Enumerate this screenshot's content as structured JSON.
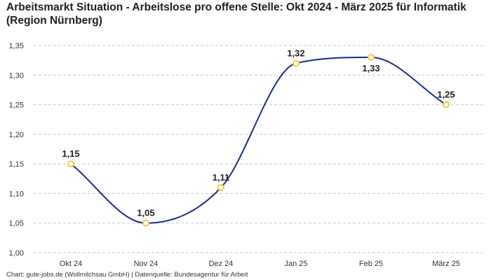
{
  "chart_data": {
    "type": "line",
    "title": "Arbeitsmarkt Situation - Arbeitslose pro offene Stelle: Okt 2024 - März 2025 für Informatik (Region Nürnberg)",
    "categories": [
      "Okt 24",
      "Nov 24",
      "Dez 24",
      "Jan 25",
      "Feb 25",
      "März 25"
    ],
    "series": [
      {
        "name": "Arbeitslose pro offene Stelle",
        "values": [
          1.15,
          1.05,
          1.11,
          1.32,
          1.33,
          1.25
        ],
        "labels": [
          "1,15",
          "1,05",
          "1,11",
          "1,32",
          "1,33",
          "1,25"
        ]
      }
    ],
    "label_positions": [
      "above",
      "above",
      "above",
      "above",
      "below",
      "above"
    ],
    "ylim": [
      1.0,
      1.35
    ],
    "yticks": [
      1.0,
      1.05,
      1.1,
      1.15,
      1.2,
      1.25,
      1.3,
      1.35
    ],
    "ytick_labels": [
      "1,00",
      "1,05",
      "1,10",
      "1,15",
      "1,20",
      "1,25",
      "1,30",
      "1,35"
    ],
    "xlabel": "",
    "ylabel": "",
    "grid": true,
    "colors": {
      "line": "#1a2b8c",
      "marker_edge": "#f5c842",
      "marker_fill": "#ffffff",
      "grid": "#c8c8c8"
    }
  },
  "footer": "Chart: gute-jobs.de (Wollmilchsau GmbH) | Datenquelle: Bundesagentur für Arbeit"
}
